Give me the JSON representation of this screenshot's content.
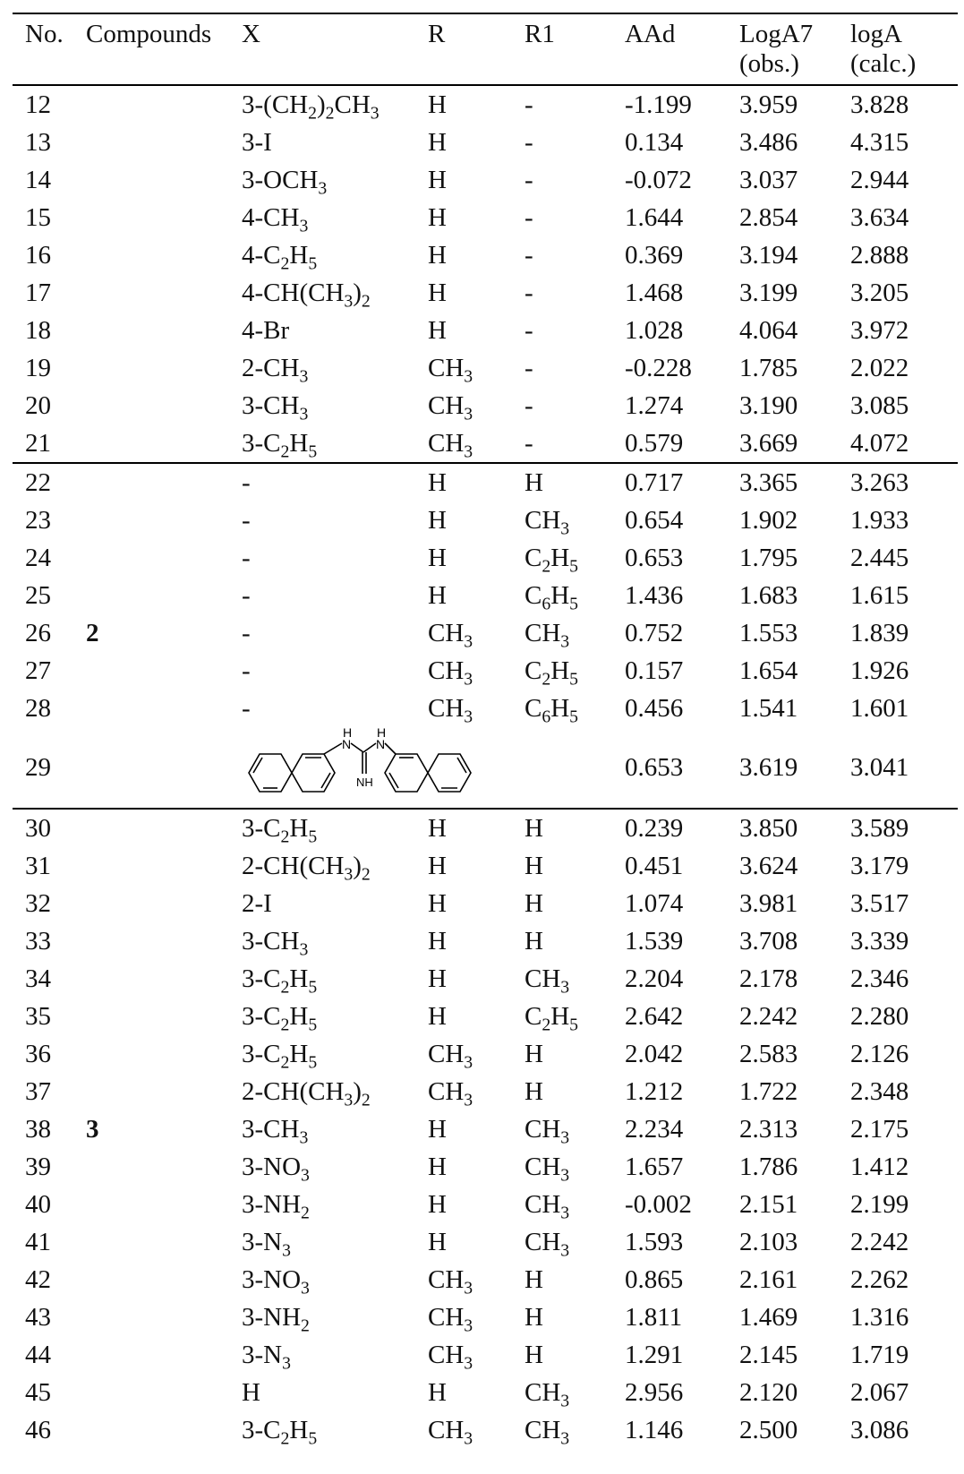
{
  "headers": {
    "no": "No.",
    "compounds": "Compounds",
    "x": "X",
    "r": "R",
    "r1": "R1",
    "aad": "AAd",
    "log_obs_line1": "LogA7",
    "log_obs_line2": "(obs.)",
    "log_calc_line1": "logA",
    "log_calc_line2": "(calc.)"
  },
  "group_labels": {
    "group2": "2",
    "group3": "3"
  },
  "rows": [
    {
      "no": "12",
      "x_pre": "3-(CH",
      "x_s1": "2",
      "x_mid": ")",
      "x_s2": "2",
      "x_post": "CH",
      "x_s3": "3",
      "r_pre": "H",
      "r1_pre": "-",
      "aad": "-1.199",
      "obs": "3.959",
      "calc": "3.828"
    },
    {
      "no": "13",
      "x_pre": "3-I",
      "r_pre": "H",
      "r1_pre": "-",
      "aad": "0.134",
      "obs": "3.486",
      "calc": "4.315"
    },
    {
      "no": "14",
      "x_pre": "3-OCH",
      "x_s1": "3",
      "r_pre": "H",
      "r1_pre": "-",
      "aad": "-0.072",
      "obs": "3.037",
      "calc": "2.944"
    },
    {
      "no": "15",
      "x_pre": "4-CH",
      "x_s1": "3",
      "r_pre": "H",
      "r1_pre": "-",
      "aad": "1.644",
      "obs": "2.854",
      "calc": "3.634"
    },
    {
      "no": "16",
      "x_pre": "4-C",
      "x_s1": "2",
      "x_mid": "H",
      "x_s2": "5",
      "r_pre": "H",
      "r1_pre": "-",
      "aad": "0.369",
      "obs": "3.194",
      "calc": "2.888"
    },
    {
      "no": "17",
      "x_pre": "4-CH(CH",
      "x_s1": "3",
      "x_mid": ")",
      "x_s2": "2",
      "r_pre": "H",
      "r1_pre": "-",
      "aad": "1.468",
      "obs": "3.199",
      "calc": "3.205"
    },
    {
      "no": "18",
      "x_pre": "4-Br",
      "r_pre": "H",
      "r1_pre": "-",
      "aad": "1.028",
      "obs": "4.064",
      "calc": "3.972"
    },
    {
      "no": "19",
      "x_pre": "2-CH",
      "x_s1": "3",
      "r_pre": "CH",
      "r_s": "3",
      "r1_pre": "-",
      "aad": "-0.228",
      "obs": "1.785",
      "calc": "2.022"
    },
    {
      "no": "20",
      "x_pre": "3-CH",
      "x_s1": "3",
      "r_pre": "CH",
      "r_s": "3",
      "r1_pre": "-",
      "aad": "1.274",
      "obs": "3.190",
      "calc": "3.085"
    },
    {
      "no": "21",
      "x_pre": "3-C",
      "x_s1": "2",
      "x_mid": "H",
      "x_s2": "5",
      "r_pre": "CH",
      "r_s": "3",
      "r1_pre": "-",
      "aad": "0.579",
      "obs": "3.669",
      "calc": "4.072"
    },
    {
      "no": "22",
      "x_pre": "-",
      "r_pre": "H",
      "r1_pre": "H",
      "aad": "0.717",
      "obs": "3.365",
      "calc": "3.263"
    },
    {
      "no": "23",
      "x_pre": "-",
      "r_pre": "H",
      "r1_pre": "CH",
      "r1_s": "3",
      "aad": "0.654",
      "obs": "1.902",
      "calc": "1.933"
    },
    {
      "no": "24",
      "x_pre": "-",
      "r_pre": "H",
      "r1_pre": "C",
      "r1_s": "2",
      "r1_mid": "H",
      "r1_s2": "5",
      "aad": "0.653",
      "obs": "1.795",
      "calc": "2.445"
    },
    {
      "no": "25",
      "x_pre": "-",
      "r_pre": "H",
      "r1_pre": "C",
      "r1_s": "6",
      "r1_mid": "H",
      "r1_s2": "5",
      "aad": "1.436",
      "obs": "1.683",
      "calc": "1.615"
    },
    {
      "no": "26",
      "x_pre": "-",
      "r_pre": "CH",
      "r_s": "3",
      "r1_pre": "CH",
      "r1_s": "3",
      "aad": "0.752",
      "obs": "1.553",
      "calc": "1.839"
    },
    {
      "no": "27",
      "x_pre": "-",
      "r_pre": "CH",
      "r_s": "3",
      "r1_pre": "C",
      "r1_s": "2",
      "r1_mid": "H",
      "r1_s2": "5",
      "aad": "0.157",
      "obs": "1.654",
      "calc": "1.926"
    },
    {
      "no": "28",
      "x_pre": "-",
      "r_pre": "CH",
      "r_s": "3",
      "r1_pre": "C",
      "r1_s": "6",
      "r1_mid": "H",
      "r1_s2": "5",
      "aad": "0.456",
      "obs": "1.541",
      "calc": "1.601"
    },
    {
      "no": "29",
      "aad": "0.653",
      "obs": "3.619",
      "calc": "3.041",
      "structure_labels": {
        "h_left": "H",
        "n_left": "N",
        "h_right": "H",
        "n_right": "N",
        "nh": "NH"
      }
    },
    {
      "no": "30",
      "x_pre": "3-C",
      "x_s1": "2",
      "x_mid": "H",
      "x_s2": "5",
      "r_pre": "H",
      "r1_pre": "H",
      "aad": "0.239",
      "obs": "3.850",
      "calc": "3.589"
    },
    {
      "no": "31",
      "x_pre": "2-CH(CH",
      "x_s1": "3",
      "x_mid": ")",
      "x_s2": "2",
      "r_pre": "H",
      "r1_pre": "H",
      "aad": "0.451",
      "obs": "3.624",
      "calc": "3.179"
    },
    {
      "no": "32",
      "x_pre": "2-I",
      "r_pre": "H",
      "r1_pre": "H",
      "aad": "1.074",
      "obs": "3.981",
      "calc": "3.517"
    },
    {
      "no": "33",
      "x_pre": "3-CH",
      "x_s1": "3",
      "r_pre": "H",
      "r1_pre": "H",
      "aad": "1.539",
      "obs": "3.708",
      "calc": "3.339"
    },
    {
      "no": "34",
      "x_pre": "3-C",
      "x_s1": "2",
      "x_mid": "H",
      "x_s2": "5",
      "r_pre": "H",
      "r1_pre": "CH",
      "r1_s": "3",
      "aad": "2.204",
      "obs": "2.178",
      "calc": "2.346"
    },
    {
      "no": "35",
      "x_pre": "3-C",
      "x_s1": "2",
      "x_mid": "H",
      "x_s2": "5",
      "r_pre": "H",
      "r1_pre": "C",
      "r1_s": "2",
      "r1_mid": "H",
      "r1_s2": "5",
      "aad": "2.642",
      "obs": "2.242",
      "calc": "2.280"
    },
    {
      "no": "36",
      "x_pre": "3-C",
      "x_s1": "2",
      "x_mid": "H",
      "x_s2": "5",
      "r_pre": "CH",
      "r_s": "3",
      "r1_pre": "H",
      "aad": "2.042",
      "obs": "2.583",
      "calc": "2.126"
    },
    {
      "no": "37",
      "x_pre": "2-CH(CH",
      "x_s1": "3",
      "x_mid": ")",
      "x_s2": "2",
      "r_pre": "CH",
      "r_s": "3",
      "r1_pre": "H",
      "aad": "1.212",
      "obs": "1.722",
      "calc": "2.348"
    },
    {
      "no": "38",
      "x_pre": "3-CH",
      "x_s1": "3",
      "r_pre": "H",
      "r1_pre": "CH",
      "r1_s": "3",
      "aad": "2.234",
      "obs": "2.313",
      "calc": "2.175"
    },
    {
      "no": "39",
      "x_pre": "3-NO",
      "x_s1": "3",
      "r_pre": "H",
      "r1_pre": "CH",
      "r1_s": "3",
      "aad": "1.657",
      "obs": "1.786",
      "calc": "1.412"
    },
    {
      "no": "40",
      "x_pre": "3-NH",
      "x_s1": "2",
      "r_pre": "H",
      "r1_pre": "CH",
      "r1_s": "3",
      "aad": "-0.002",
      "obs": "2.151",
      "calc": "2.199"
    },
    {
      "no": "41",
      "x_pre": "3-N",
      "x_s1": "3",
      "r_pre": "H",
      "r1_pre": "CH",
      "r1_s": "3",
      "aad": "1.593",
      "obs": "2.103",
      "calc": "2.242"
    },
    {
      "no": "42",
      "x_pre": "3-NO",
      "x_s1": "3",
      "r_pre": "CH",
      "r_s": "3",
      "r1_pre": "H",
      "aad": "0.865",
      "obs": "2.161",
      "calc": "2.262"
    },
    {
      "no": "43",
      "x_pre": "3-NH",
      "x_s1": "2",
      "r_pre": "CH",
      "r_s": "3",
      "r1_pre": "H",
      "aad": "1.811",
      "obs": "1.469",
      "calc": "1.316"
    },
    {
      "no": "44",
      "x_pre": "3-N",
      "x_s1": "3",
      "r_pre": "CH",
      "r_s": "3",
      "r1_pre": "H",
      "aad": "1.291",
      "obs": "2.145",
      "calc": "1.719"
    },
    {
      "no": "45",
      "x_pre": "H",
      "r_pre": "H",
      "r1_pre": "CH",
      "r1_s": "3",
      "aad": "2.956",
      "obs": "2.120",
      "calc": "2.067"
    },
    {
      "no": "46",
      "x_pre": "3-C",
      "x_s1": "2",
      "x_mid": "H",
      "x_s2": "5",
      "r_pre": "CH",
      "r_s": "3",
      "r1_pre": "CH",
      "r1_s": "3",
      "aad": "1.146",
      "obs": "2.500",
      "calc": "3.086"
    }
  ]
}
